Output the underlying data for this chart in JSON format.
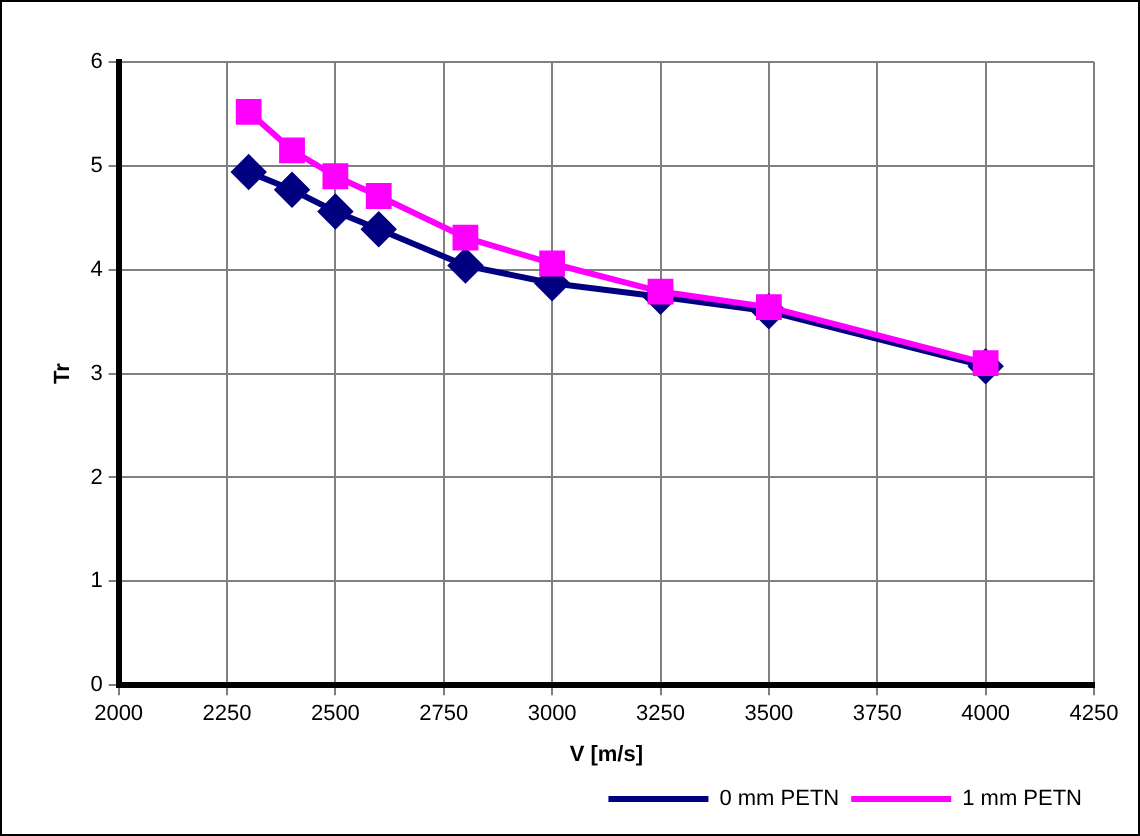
{
  "chart_data": {
    "type": "line",
    "xlabel": "V [m/s]",
    "ylabel": "Tr",
    "x": [
      2300,
      2400,
      2500,
      2600,
      2800,
      3000,
      3250,
      3500,
      4000
    ],
    "series": [
      {
        "name": "0 mm PETN",
        "color": "#000080",
        "marker": "diamond",
        "values": [
          4.94,
          4.77,
          4.56,
          4.39,
          4.04,
          3.87,
          3.74,
          3.6,
          3.07
        ]
      },
      {
        "name": "1 mm PETN",
        "color": "#ff00ff",
        "marker": "square",
        "values": [
          5.52,
          5.15,
          4.9,
          4.71,
          4.31,
          4.06,
          3.79,
          3.64,
          3.1
        ]
      }
    ],
    "xlim": [
      2000,
      4250
    ],
    "xticks": [
      2000,
      2250,
      2500,
      2750,
      3000,
      3250,
      3500,
      3750,
      4000,
      4250
    ],
    "ylim": [
      0,
      6
    ],
    "yticks": [
      0,
      1,
      2,
      3,
      4,
      5,
      6
    ],
    "grid": true,
    "legend": "bottom right",
    "line_style": "solid"
  }
}
